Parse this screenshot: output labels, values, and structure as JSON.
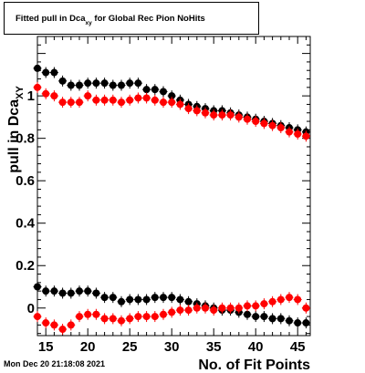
{
  "chart_data": {
    "type": "scatter",
    "title": {
      "main": "Fitted pull in Dca",
      "subscript": "xy",
      "rest": " for Global Rec Pion NoHits"
    },
    "xlabel": "No. of Fit Points",
    "ylabel": {
      "main": "pull in Dca",
      "subscript": "XY"
    },
    "xlim": [
      14,
      46.5
    ],
    "ylim": [
      -0.13,
      1.28
    ],
    "x_ticks": [
      15,
      20,
      25,
      30,
      35,
      40,
      45
    ],
    "y_ticks": [
      0,
      0.2,
      0.4,
      0.6,
      0.8,
      1
    ],
    "x_tick_labels": [
      "15",
      "20",
      "25",
      "30",
      "35",
      "40",
      "45"
    ],
    "y_tick_labels": [
      "0",
      "0.2",
      "0.4",
      "0.6",
      "0.8",
      "1"
    ],
    "x": [
      14,
      15,
      16,
      17,
      18,
      19,
      20,
      21,
      22,
      23,
      24,
      25,
      26,
      27,
      28,
      29,
      30,
      31,
      32,
      33,
      34,
      35,
      36,
      37,
      38,
      39,
      40,
      41,
      42,
      43,
      44,
      45,
      46
    ],
    "series": [
      {
        "color": "#000000",
        "values": [
          1.13,
          1.11,
          1.11,
          1.07,
          1.05,
          1.05,
          1.06,
          1.06,
          1.06,
          1.05,
          1.05,
          1.06,
          1.06,
          1.03,
          1.03,
          1.02,
          1.0,
          0.98,
          0.96,
          0.95,
          0.94,
          0.93,
          0.93,
          0.92,
          0.91,
          0.9,
          0.89,
          0.88,
          0.87,
          0.86,
          0.85,
          0.84,
          0.83
        ]
      },
      {
        "color": "#ff0000",
        "values": [
          1.04,
          1.01,
          1.0,
          0.97,
          0.97,
          0.97,
          1.0,
          0.98,
          0.98,
          0.98,
          0.97,
          0.98,
          0.99,
          0.99,
          0.98,
          0.97,
          0.97,
          0.96,
          0.94,
          0.93,
          0.92,
          0.91,
          0.91,
          0.91,
          0.9,
          0.89,
          0.88,
          0.87,
          0.86,
          0.85,
          0.83,
          0.82,
          0.81
        ]
      },
      {
        "color": "#000000",
        "values": [
          0.1,
          0.08,
          0.08,
          0.07,
          0.07,
          0.08,
          0.08,
          0.07,
          0.05,
          0.05,
          0.03,
          0.04,
          0.04,
          0.04,
          0.05,
          0.05,
          0.05,
          0.04,
          0.03,
          0.02,
          0.01,
          0.0,
          -0.01,
          -0.01,
          -0.02,
          -0.03,
          -0.04,
          -0.04,
          -0.05,
          -0.05,
          -0.06,
          -0.07,
          -0.07
        ]
      },
      {
        "color": "#ff0000",
        "values": [
          -0.04,
          -0.07,
          -0.08,
          -0.1,
          -0.08,
          -0.04,
          -0.03,
          -0.03,
          -0.05,
          -0.05,
          -0.06,
          -0.05,
          -0.04,
          -0.04,
          -0.04,
          -0.03,
          -0.02,
          -0.01,
          -0.01,
          0.0,
          0.0,
          -0.01,
          0.0,
          0.0,
          0.0,
          0.01,
          0.01,
          0.02,
          0.03,
          0.04,
          0.05,
          0.04,
          0.0
        ]
      }
    ],
    "grid": false
  },
  "footer": "Mon Dec 20 21:18:08 2021"
}
